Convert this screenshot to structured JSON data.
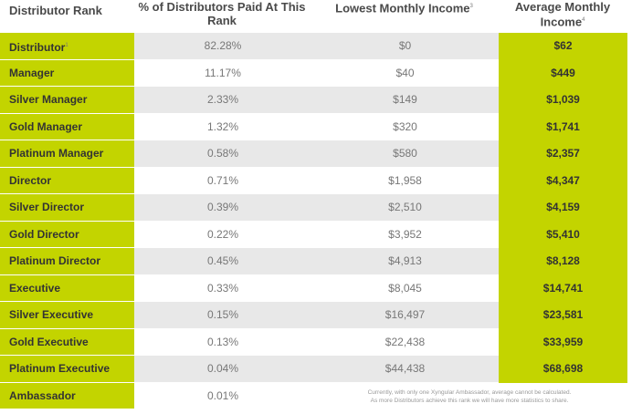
{
  "headers": {
    "rank": "Distributor Rank",
    "pct": "% of Distributors Paid At This Rank",
    "low": "Lowest Monthly Income",
    "low_sup": "3",
    "avg": "Average Monthly Income",
    "avg_sup": "4"
  },
  "rows": [
    {
      "rank": "Distributor",
      "rank_sup": "1",
      "pct": "82.28%",
      "low": "$0",
      "avg": "$62"
    },
    {
      "rank": "Manager",
      "pct": "11.17%",
      "low": "$40",
      "avg": "$449"
    },
    {
      "rank": "Silver Manager",
      "pct": "2.33%",
      "low": "$149",
      "avg": "$1,039"
    },
    {
      "rank": "Gold Manager",
      "pct": "1.32%",
      "low": "$320",
      "avg": "$1,741"
    },
    {
      "rank": "Platinum Manager",
      "pct": "0.58%",
      "low": "$580",
      "avg": "$2,357"
    },
    {
      "rank": "Director",
      "pct": "0.71%",
      "low": "$1,958",
      "avg": "$4,347"
    },
    {
      "rank": "Silver Director",
      "pct": "0.39%",
      "low": "$2,510",
      "avg": "$4,159"
    },
    {
      "rank": "Gold Director",
      "pct": "0.22%",
      "low": "$3,952",
      "avg": "$5,410"
    },
    {
      "rank": "Platinum Director",
      "pct": "0.45%",
      "low": "$4,913",
      "avg": "$8,128"
    },
    {
      "rank": "Executive",
      "pct": "0.33%",
      "low": "$8,045",
      "avg": "$14,741"
    },
    {
      "rank": "Silver Executive",
      "pct": "0.15%",
      "low": "$16,497",
      "avg": "$23,581"
    },
    {
      "rank": "Gold Executive",
      "pct": "0.13%",
      "low": "$22,438",
      "avg": "$33,959"
    },
    {
      "rank": "Platinum Executive",
      "pct": "0.04%",
      "low": "$44,438",
      "avg": "$68,698"
    }
  ],
  "ambassador": {
    "rank": "Ambassador",
    "pct": "0.01%",
    "note_line1": "Currently, with only one Xyngular Ambassador, average cannot be calculated.",
    "note_line2": "As more Distributors achieve this rank we will have more statistics to share."
  },
  "colors": {
    "accent": "#c3d400",
    "shade": "#e8e8e8"
  }
}
